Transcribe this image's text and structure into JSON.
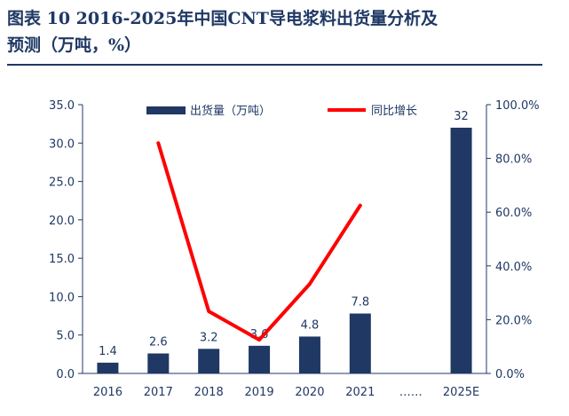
{
  "page": {
    "title_line1": "图表 10   2016-2025年中国CNT导电浆料出货量分析及",
    "title_line2": "预测（万吨，%）"
  },
  "chart_data": {
    "type": "bar",
    "categories": [
      "2016",
      "2017",
      "2018",
      "2019",
      "2020",
      "2021",
      "……",
      "2025E"
    ],
    "series": [
      {
        "name": "出货量（万吨）",
        "type": "bar",
        "axis": "left",
        "values": [
          1.4,
          2.6,
          3.2,
          3.6,
          4.8,
          7.8,
          null,
          32
        ],
        "labels": [
          "1.4",
          "2.6",
          "3.2",
          "3.6",
          "4.8",
          "7.8",
          "",
          "32"
        ],
        "color": "#1f3864"
      },
      {
        "name": "同比增长",
        "type": "line",
        "axis": "right",
        "values": [
          null,
          85.7,
          23.1,
          12.5,
          33.3,
          62.5,
          null,
          null
        ],
        "color": "#ff0000"
      }
    ],
    "y_left": {
      "min": 0,
      "max": 35,
      "step": 5,
      "tick_labels": [
        "0.0",
        "5.0",
        "10.0",
        "15.0",
        "20.0",
        "25.0",
        "30.0",
        "35.0"
      ]
    },
    "y_right": {
      "min": 0,
      "max": 100,
      "step": 20,
      "tick_labels": [
        "0.0%",
        "20.0%",
        "40.0%",
        "60.0%",
        "80.0%",
        "100.0%"
      ]
    },
    "grid": false,
    "legend": "top-center"
  }
}
